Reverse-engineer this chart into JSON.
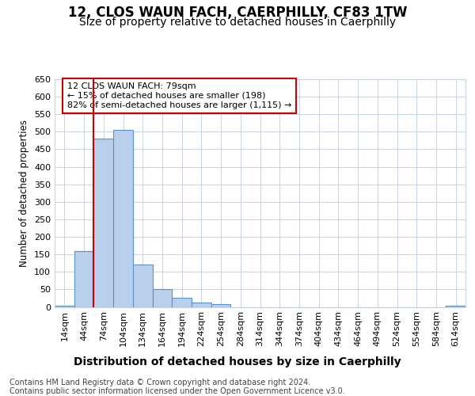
{
  "title": "12, CLOS WAUN FACH, CAERPHILLY, CF83 1TW",
  "subtitle": "Size of property relative to detached houses in Caerphilly",
  "xlabel": "Distribution of detached houses by size in Caerphilly",
  "ylabel": "Number of detached properties",
  "categories": [
    "14sqm",
    "44sqm",
    "74sqm",
    "104sqm",
    "134sqm",
    "164sqm",
    "194sqm",
    "224sqm",
    "254sqm",
    "284sqm",
    "314sqm",
    "344sqm",
    "374sqm",
    "404sqm",
    "434sqm",
    "464sqm",
    "494sqm",
    "524sqm",
    "554sqm",
    "584sqm",
    "614sqm"
  ],
  "bar_values": [
    4,
    160,
    480,
    505,
    120,
    50,
    25,
    12,
    8,
    0,
    0,
    0,
    0,
    0,
    0,
    0,
    0,
    0,
    0,
    0,
    4
  ],
  "bar_color": "#b8d0eb",
  "bar_edge_color": "#5b8fc9",
  "ylim": [
    0,
    650
  ],
  "yticks": [
    0,
    50,
    100,
    150,
    200,
    250,
    300,
    350,
    400,
    450,
    500,
    550,
    600,
    650
  ],
  "red_line_bin_index": 2,
  "annotation_text_line1": "12 CLOS WAUN FACH: 79sqm",
  "annotation_text_line2": "← 15% of detached houses are smaller (198)",
  "annotation_text_line3": "82% of semi-detached houses are larger (1,115) →",
  "annotation_box_facecolor": "#ffffff",
  "annotation_box_edgecolor": "#cc0000",
  "red_line_color": "#cc0000",
  "footer_line1": "Contains HM Land Registry data © Crown copyright and database right 2024.",
  "footer_line2": "Contains public sector information licensed under the Open Government Licence v3.0.",
  "bg_color": "#ffffff",
  "grid_color": "#c8d4e3",
  "title_fontsize": 12,
  "subtitle_fontsize": 10,
  "xlabel_fontsize": 10,
  "ylabel_fontsize": 8.5,
  "tick_fontsize": 8,
  "annotation_fontsize": 8,
  "footer_fontsize": 7
}
